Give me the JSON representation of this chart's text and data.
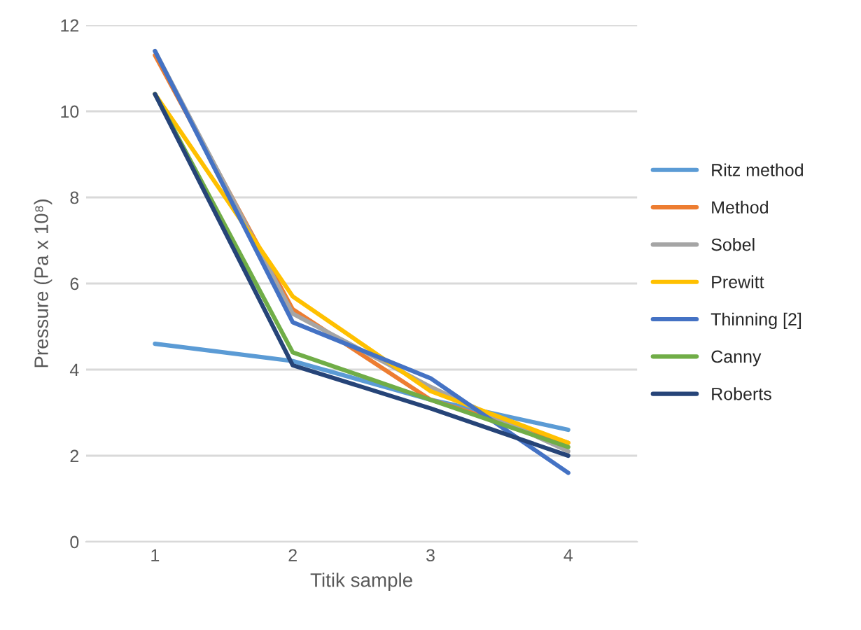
{
  "chart_data": {
    "type": "line",
    "xlabel": "Titik sample",
    "ylabel": "Pressure (Pa x 10⁸)",
    "categories": [
      "1",
      "2",
      "3",
      "4"
    ],
    "series": [
      {
        "name": "Ritz method",
        "color": "#5b9bd5",
        "values": [
          4.6,
          4.2,
          3.3,
          2.6
        ]
      },
      {
        "name": "Method",
        "color": "#ed7d31",
        "values": [
          11.3,
          5.4,
          3.3,
          2.3
        ]
      },
      {
        "name": "Sobel",
        "color": "#a5a5a5",
        "values": [
          11.4,
          5.3,
          3.6,
          2.1
        ]
      },
      {
        "name": "Prewitt",
        "color": "#ffc000",
        "values": [
          10.4,
          5.7,
          3.5,
          2.3
        ]
      },
      {
        "name": "Thinning [2]",
        "color": "#4472c4",
        "values": [
          11.4,
          5.1,
          3.8,
          1.6
        ]
      },
      {
        "name": "Canny",
        "color": "#70ad47",
        "values": [
          10.4,
          4.4,
          3.3,
          2.2
        ]
      },
      {
        "name": "Roberts",
        "color": "#264478",
        "values": [
          10.4,
          4.1,
          3.1,
          2.0
        ]
      }
    ],
    "ylim": [
      0,
      12
    ],
    "yticks": [
      0,
      2,
      4,
      6,
      8,
      10,
      12
    ],
    "grid": "y",
    "legend": "right"
  }
}
